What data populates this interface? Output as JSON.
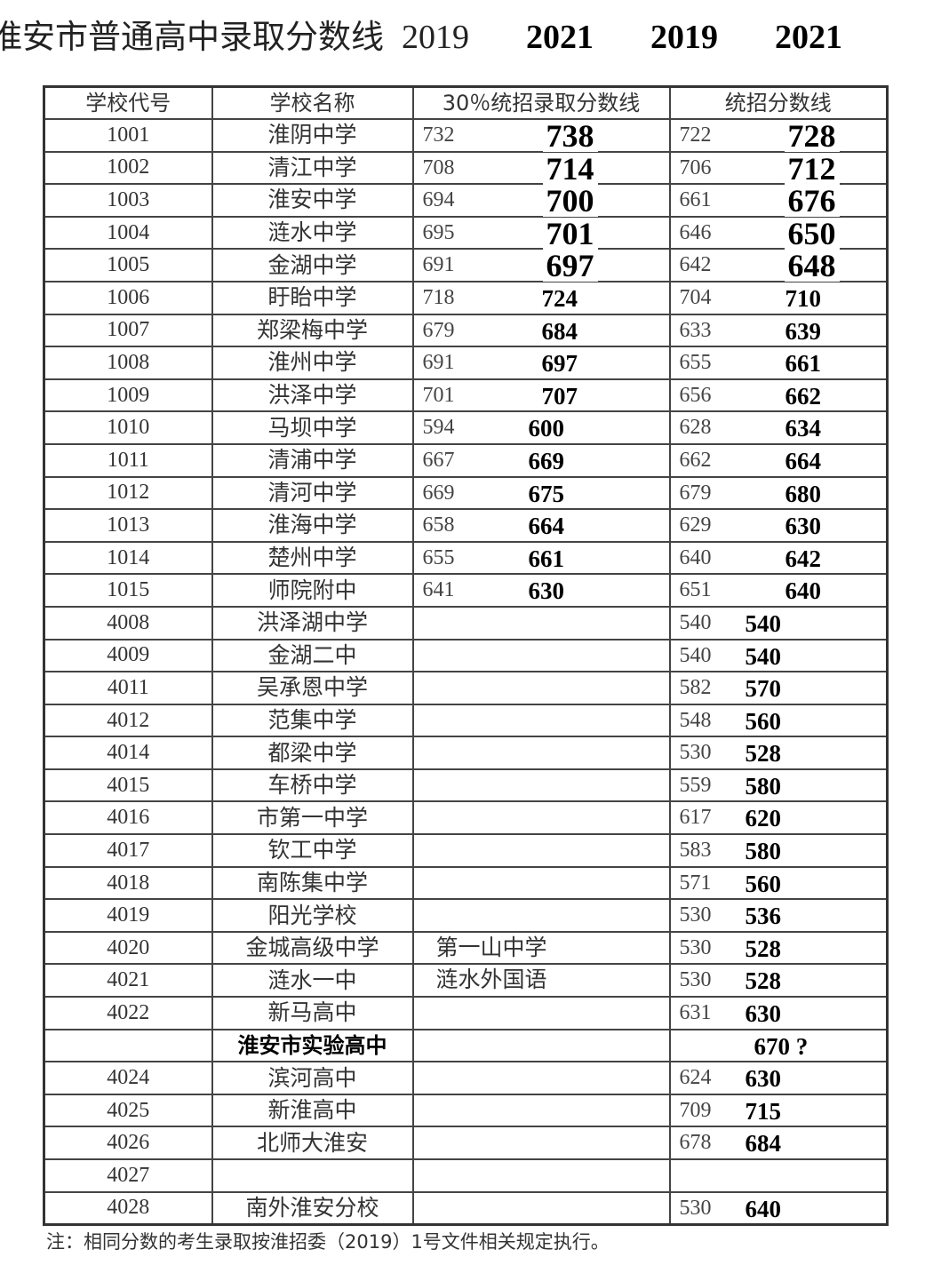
{
  "title": "淮安市普通高中录取分数线",
  "years": [
    "2019",
    "2021",
    "2019",
    "2021"
  ],
  "headers": [
    "学校代号",
    "学校名称",
    "30％统招录取分数线",
    "统招分数线"
  ],
  "rows": [
    {
      "code": "1001",
      "name": "淮阴中学",
      "p2019": "732",
      "p2021": "738",
      "u2019": "722",
      "u2021": "728"
    },
    {
      "code": "1002",
      "name": "清江中学",
      "p2019": "708",
      "p2021": "714",
      "u2019": "706",
      "u2021": "712"
    },
    {
      "code": "1003",
      "name": "淮安中学",
      "p2019": "694",
      "p2021": "700",
      "u2019": "661",
      "u2021": "676"
    },
    {
      "code": "1004",
      "name": "涟水中学",
      "p2019": "695",
      "p2021": "701",
      "u2019": "646",
      "u2021": "650"
    },
    {
      "code": "1005",
      "name": "金湖中学",
      "p2019": "691",
      "p2021": "697",
      "u2019": "642",
      "u2021": "648"
    },
    {
      "code": "1006",
      "name": "盱眙中学",
      "p2019": "718",
      "p2021": "724",
      "u2019": "704",
      "u2021": "710"
    },
    {
      "code": "1007",
      "name": "郑梁梅中学",
      "p2019": "679",
      "p2021": "684",
      "u2019": "633",
      "u2021": "639"
    },
    {
      "code": "1008",
      "name": "淮州中学",
      "p2019": "691",
      "p2021": "697",
      "u2019": "655",
      "u2021": "661"
    },
    {
      "code": "1009",
      "name": "洪泽中学",
      "p2019": "701",
      "p2021": "707",
      "u2019": "656",
      "u2021": "662"
    },
    {
      "code": "1010",
      "name": "马坝中学",
      "p2019": "594",
      "p2021": "600",
      "u2019": "628",
      "u2021": "634"
    },
    {
      "code": "1011",
      "name": "清浦中学",
      "p2019": "667",
      "p2021": "669",
      "u2019": "662",
      "u2021": "664"
    },
    {
      "code": "1012",
      "name": "清河中学",
      "p2019": "669",
      "p2021": "675",
      "u2019": "679",
      "u2021": "680"
    },
    {
      "code": "1013",
      "name": "淮海中学",
      "p2019": "658",
      "p2021": "664",
      "u2019": "629",
      "u2021": "630"
    },
    {
      "code": "1014",
      "name": "楚州中学",
      "p2019": "655",
      "p2021": "661",
      "u2019": "640",
      "u2021": "642"
    },
    {
      "code": "1015",
      "name": "师院附中",
      "p2019": "641",
      "p2021": "630",
      "u2019": "651",
      "u2021": "640"
    },
    {
      "code": "4008",
      "name": "洪泽湖中学",
      "u2019": "540",
      "u2021": "540"
    },
    {
      "code": "4009",
      "name": "金湖二中",
      "u2019": "540",
      "u2021": "540"
    },
    {
      "code": "4011",
      "name": "吴承恩中学",
      "u2019": "582",
      "u2021": "570"
    },
    {
      "code": "4012",
      "name": "范集中学",
      "u2019": "548",
      "u2021": "560"
    },
    {
      "code": "4014",
      "name": "都梁中学",
      "u2019": "530",
      "u2021": "528"
    },
    {
      "code": "4015",
      "name": "车桥中学",
      "u2019": "559",
      "u2021": "580"
    },
    {
      "code": "4016",
      "name": "市第一中学",
      "u2019": "617",
      "u2021": "620"
    },
    {
      "code": "4017",
      "name": "钦工中学",
      "u2019": "583",
      "u2021": "580"
    },
    {
      "code": "4018",
      "name": "南陈集中学",
      "u2019": "571",
      "u2021": "560"
    },
    {
      "code": "4019",
      "name": "阳光学校",
      "u2019": "530",
      "u2021": "536"
    },
    {
      "code": "4020",
      "name": "金城高级中学",
      "note": "第一山中学",
      "u2019": "530",
      "u2021": "528"
    },
    {
      "code": "4021",
      "name": "涟水一中",
      "note": "涟水外国语",
      "u2019": "530",
      "u2021": "528"
    },
    {
      "code": "4022",
      "name": "新马高中",
      "u2019": "631",
      "u2021": "630"
    },
    {
      "code": "",
      "name": "淮安市实验高中",
      "bold": true,
      "u2021": "670 ?"
    },
    {
      "code": "4024",
      "name": "滨河高中",
      "u2019": "624",
      "u2021": "630"
    },
    {
      "code": "4025",
      "name": "新淮高中",
      "u2019": "709",
      "u2021": "715"
    },
    {
      "code": "4026",
      "name": "北师大淮安",
      "u2019": "678",
      "u2021": "684"
    },
    {
      "code": "4027",
      "name": ""
    },
    {
      "code": "4028",
      "name": "南外淮安分校",
      "u2019": "530",
      "u2021": "640"
    }
  ],
  "footnote": "注：相同分数的考生录取按淮招委（2019）1号文件相关规定执行。"
}
